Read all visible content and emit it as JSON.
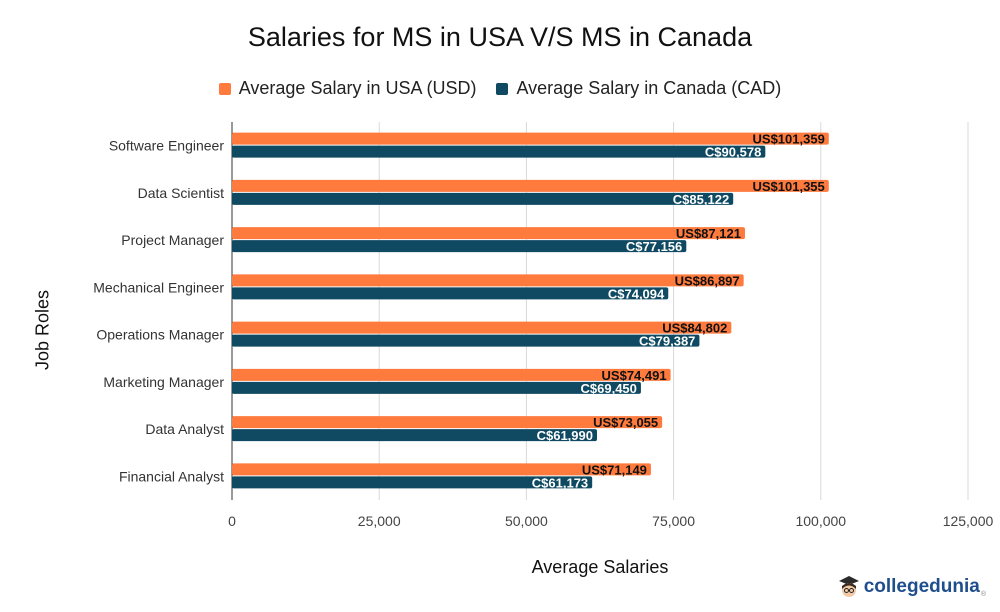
{
  "chart_data": {
    "type": "bar",
    "orientation": "horizontal",
    "title": "Salaries for MS in USA V/S MS in Canada",
    "xlabel": "Average Salaries",
    "ylabel": "Job Roles",
    "xlim": [
      0,
      125000
    ],
    "xticks": [
      0,
      25000,
      50000,
      75000,
      100000,
      125000
    ],
    "xtick_labels": [
      "0",
      "25,000",
      "50,000",
      "75,000",
      "100,000",
      "125,000"
    ],
    "categories": [
      "Software Engineer",
      "Data Scientist",
      "Project Manager",
      "Mechanical Engineer",
      "Operations Manager",
      "Marketing Manager",
      "Data Analyst",
      "Financial Analyst"
    ],
    "series": [
      {
        "name": "Average Salary in USA (USD)",
        "color": "#ff7a3d",
        "values": [
          101359,
          101355,
          87121,
          86897,
          84802,
          74491,
          73055,
          71149
        ],
        "labels": [
          "US$101,359",
          "US$101,355",
          "US$87,121",
          "US$86,897",
          "US$84,802",
          "US$74,491",
          "US$73,055",
          "US$71,149"
        ]
      },
      {
        "name": "Average Salary in Canada (CAD)",
        "color": "#0f4a62",
        "values": [
          90578,
          85122,
          77156,
          74094,
          79387,
          69450,
          61990,
          61173
        ],
        "labels": [
          "C$90,578",
          "C$85,122",
          "C$77,156",
          "C$74,094",
          "C$79,387",
          "C$69,450",
          "C$61,990",
          "C$61,173"
        ]
      }
    ],
    "grid": true,
    "legend_position": "top-center"
  },
  "logo": {
    "icon": "graduate-avatar-icon",
    "text": "collegedunia",
    "suffix": "®"
  }
}
